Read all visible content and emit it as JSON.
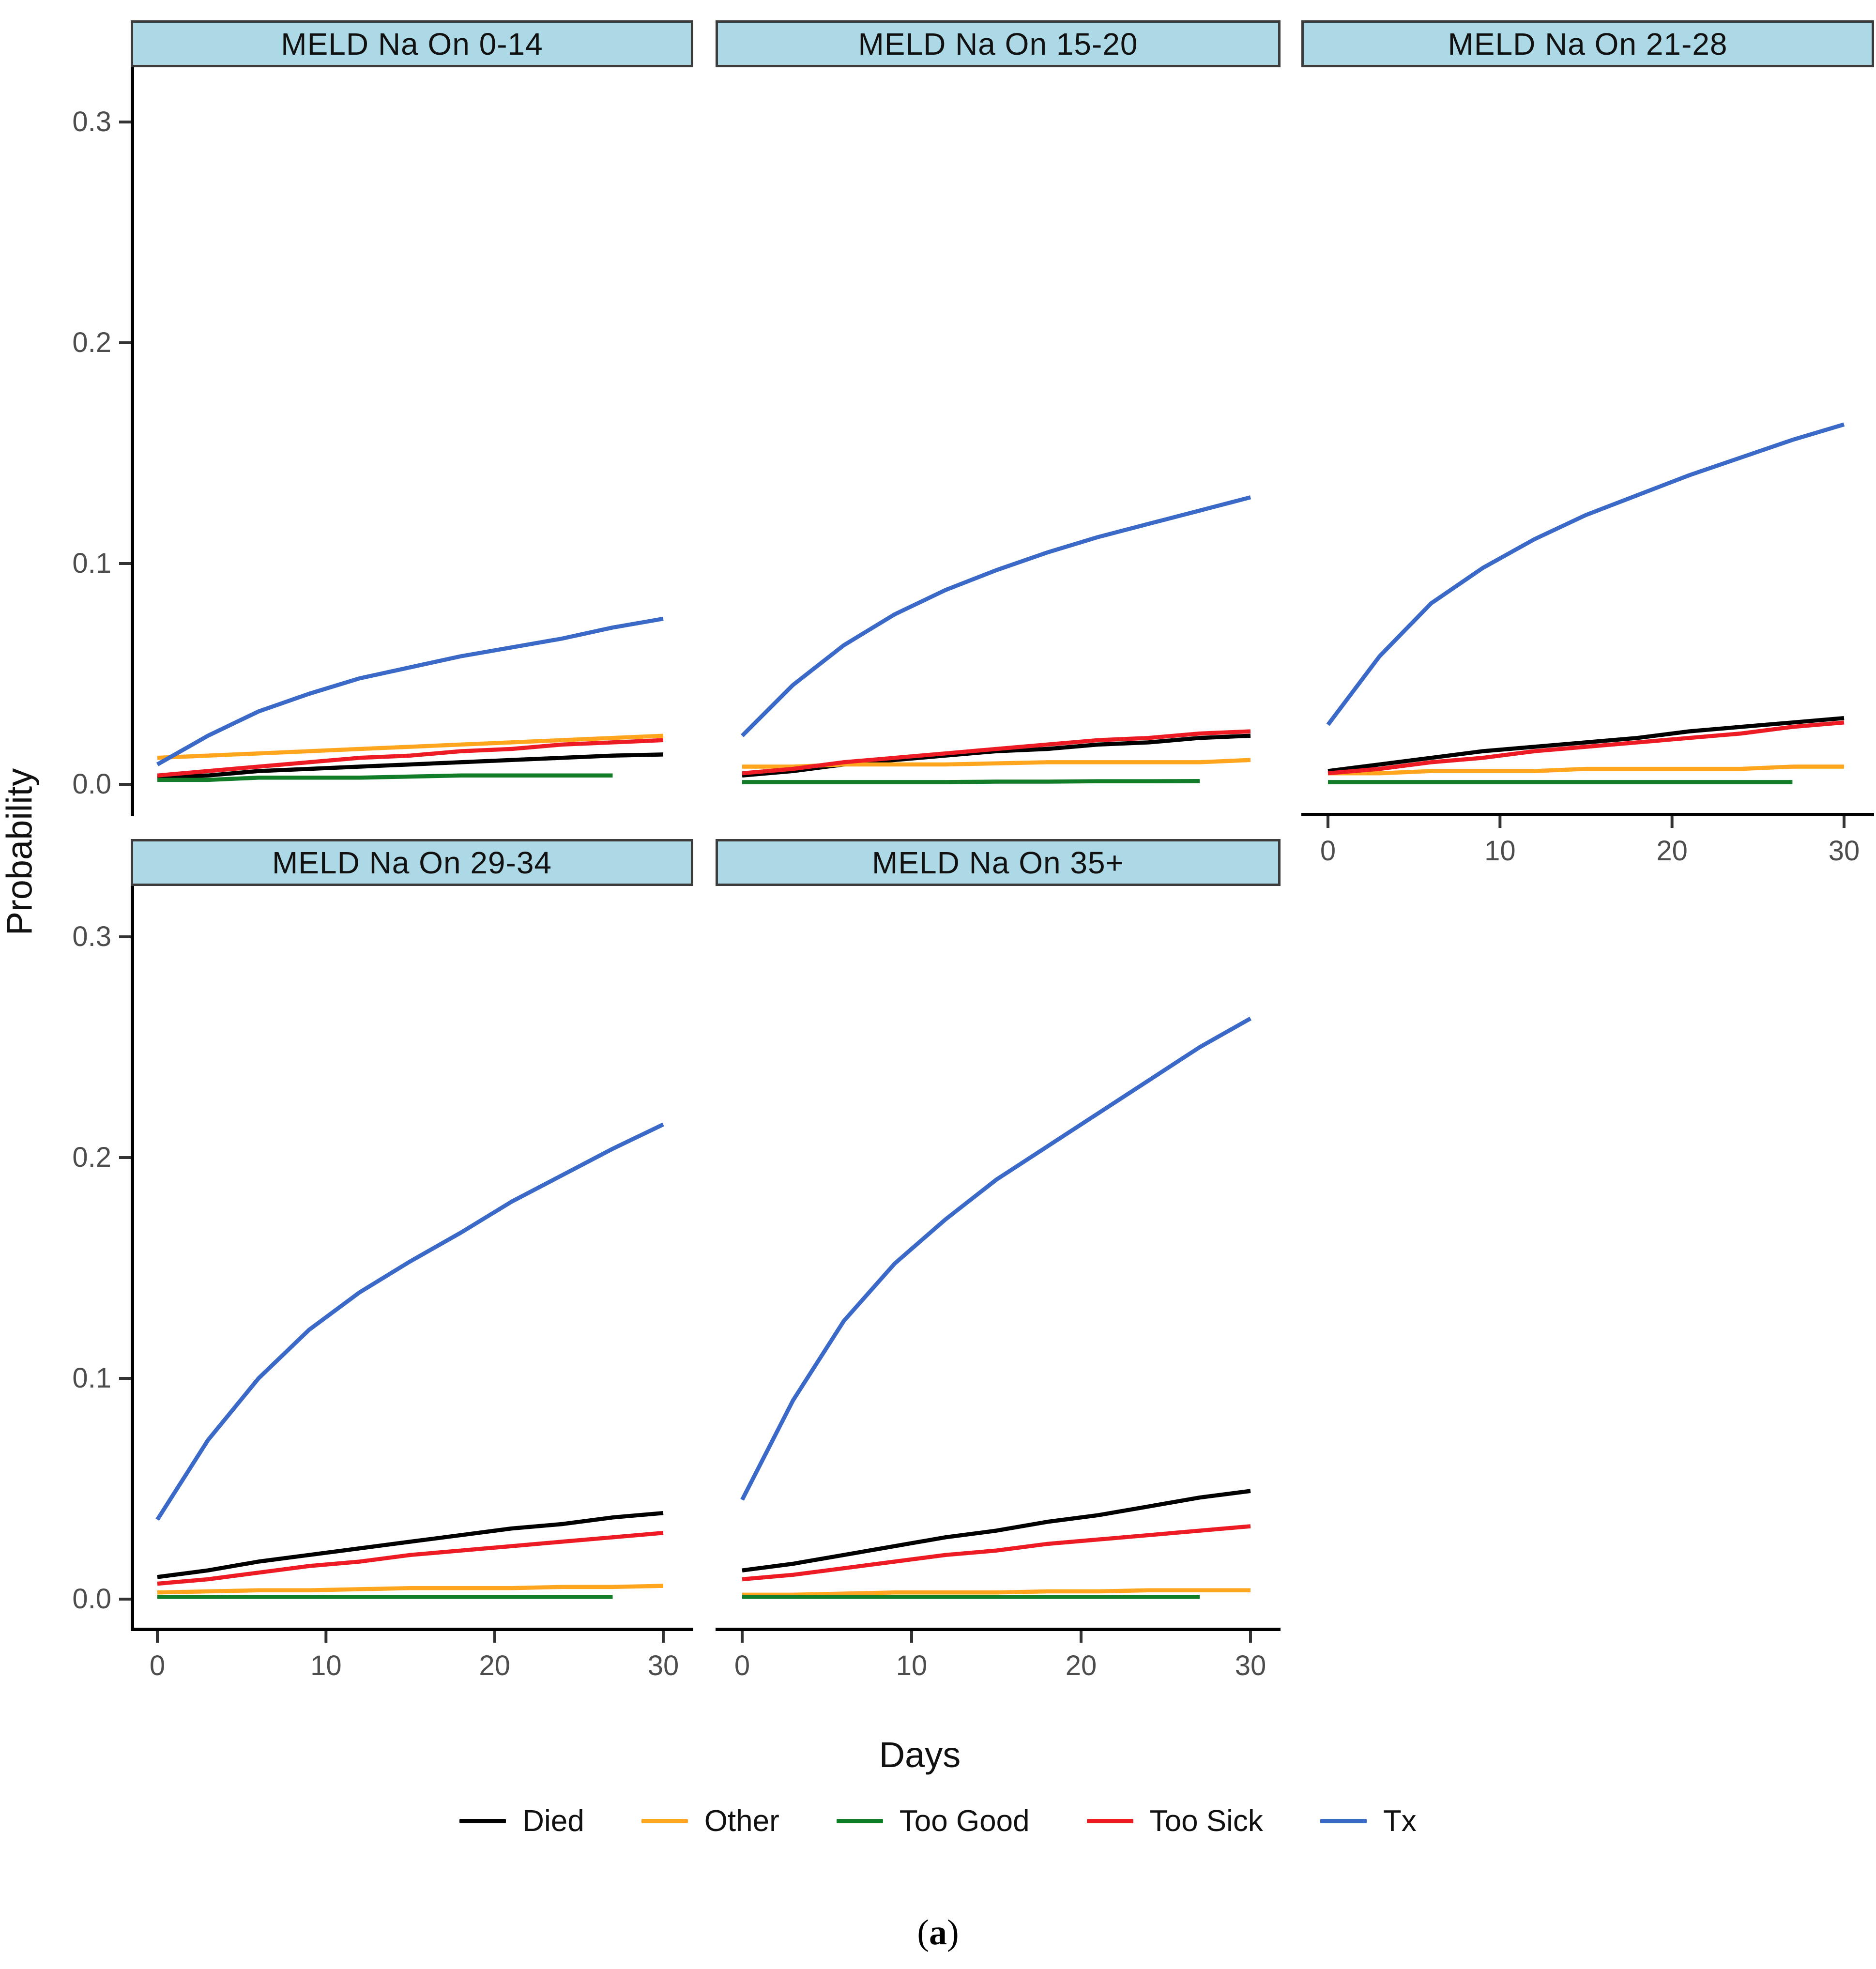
{
  "figure": {
    "y_axis_title": "Probability",
    "x_axis_title": "Days",
    "caption": "(a)",
    "caption_open": "(",
    "caption_letter": "a",
    "caption_close": ")",
    "header_fill": "#ADD8E6",
    "header_border": "#3C3C3C",
    "axis_line_color": "#000000",
    "tick_color": "#333333",
    "tick_label_color": "#4D4D4D"
  },
  "legend": {
    "items": [
      {
        "label": "Died",
        "color": "#000000"
      },
      {
        "label": "Other",
        "color": "#FFA51E"
      },
      {
        "label": "Too Good",
        "color": "#127D28"
      },
      {
        "label": "Too Sick",
        "color": "#ED1C24"
      },
      {
        "label": "Tx",
        "color": "#3B69C8"
      }
    ]
  },
  "chart_data": [
    {
      "type": "line",
      "title": "MELD Na On 0-14",
      "xlabel": "Days",
      "ylabel": "Probability",
      "xlim": [
        0,
        30
      ],
      "ylim": [
        0.0,
        0.3
      ],
      "x_ticks": [
        "0",
        "10",
        "20",
        "30"
      ],
      "y_ticks": [
        "0.3",
        "0.2",
        "0.1",
        "0.0"
      ],
      "x": [
        0,
        3,
        6,
        9,
        12,
        15,
        18,
        21,
        24,
        27,
        30
      ],
      "series": [
        {
          "name": "Died",
          "color": "#000000",
          "days": [
            0,
            3,
            6,
            9,
            12,
            15,
            18,
            21,
            24,
            27,
            30
          ],
          "values": [
            0.003,
            0.004,
            0.006,
            0.007,
            0.008,
            0.009,
            0.01,
            0.011,
            0.012,
            0.013,
            0.0135
          ]
        },
        {
          "name": "Other",
          "color": "#FFA51E",
          "days": [
            0,
            3,
            6,
            9,
            12,
            15,
            18,
            21,
            24,
            27,
            30
          ],
          "values": [
            0.012,
            0.013,
            0.014,
            0.015,
            0.016,
            0.017,
            0.018,
            0.019,
            0.02,
            0.021,
            0.022
          ]
        },
        {
          "name": "Too Good",
          "color": "#127D28",
          "days": [
            0,
            3,
            6,
            9,
            12,
            15,
            18,
            21,
            24,
            27
          ],
          "values": [
            0.002,
            0.002,
            0.003,
            0.003,
            0.003,
            0.0035,
            0.004,
            0.004,
            0.004,
            0.004
          ]
        },
        {
          "name": "Too Sick",
          "color": "#ED1C24",
          "days": [
            0,
            3,
            6,
            9,
            12,
            15,
            18,
            21,
            24,
            27,
            30
          ],
          "values": [
            0.004,
            0.006,
            0.008,
            0.01,
            0.012,
            0.013,
            0.015,
            0.016,
            0.018,
            0.019,
            0.02
          ]
        },
        {
          "name": "Tx",
          "color": "#3B69C8",
          "days": [
            0,
            3,
            6,
            9,
            12,
            15,
            18,
            21,
            24,
            27,
            30
          ],
          "values": [
            0.009,
            0.022,
            0.033,
            0.041,
            0.048,
            0.053,
            0.058,
            0.062,
            0.066,
            0.071,
            0.075
          ]
        }
      ]
    },
    {
      "type": "line",
      "title": "MELD Na On 15-20",
      "xlabel": "Days",
      "ylabel": "Probability",
      "xlim": [
        0,
        30
      ],
      "ylim": [
        0.0,
        0.3
      ],
      "x_ticks": [
        "0",
        "10",
        "20",
        "30"
      ],
      "y_ticks": [
        "0.3",
        "0.2",
        "0.1",
        "0.0"
      ],
      "x": [
        0,
        3,
        6,
        9,
        12,
        15,
        18,
        21,
        24,
        27,
        30
      ],
      "series": [
        {
          "name": "Died",
          "color": "#000000",
          "days": [
            0,
            3,
            6,
            9,
            12,
            15,
            18,
            21,
            24,
            27,
            30
          ],
          "values": [
            0.004,
            0.006,
            0.009,
            0.011,
            0.013,
            0.015,
            0.016,
            0.018,
            0.019,
            0.021,
            0.022
          ]
        },
        {
          "name": "Other",
          "color": "#FFA51E",
          "days": [
            0,
            3,
            6,
            9,
            12,
            15,
            18,
            21,
            24,
            27,
            30
          ],
          "values": [
            0.008,
            0.008,
            0.009,
            0.009,
            0.009,
            0.0095,
            0.01,
            0.01,
            0.01,
            0.01,
            0.011
          ]
        },
        {
          "name": "Too Good",
          "color": "#127D28",
          "days": [
            0,
            3,
            6,
            9,
            12,
            15,
            18,
            21,
            24,
            27
          ],
          "values": [
            0.001,
            0.001,
            0.001,
            0.001,
            0.001,
            0.0012,
            0.0012,
            0.0014,
            0.0014,
            0.0015
          ]
        },
        {
          "name": "Too Sick",
          "color": "#ED1C24",
          "days": [
            0,
            3,
            6,
            9,
            12,
            15,
            18,
            21,
            24,
            27,
            30
          ],
          "values": [
            0.005,
            0.007,
            0.01,
            0.012,
            0.014,
            0.016,
            0.018,
            0.02,
            0.021,
            0.023,
            0.024
          ]
        },
        {
          "name": "Tx",
          "color": "#3B69C8",
          "days": [
            0,
            3,
            6,
            9,
            12,
            15,
            18,
            21,
            24,
            27,
            30
          ],
          "values": [
            0.022,
            0.045,
            0.063,
            0.077,
            0.088,
            0.097,
            0.105,
            0.112,
            0.118,
            0.124,
            0.13
          ]
        }
      ]
    },
    {
      "type": "line",
      "title": "MELD Na On 21-28",
      "xlabel": "Days",
      "ylabel": "Probability",
      "xlim": [
        0,
        30
      ],
      "ylim": [
        0.0,
        0.3
      ],
      "x_ticks": [
        "0",
        "10",
        "20",
        "30"
      ],
      "y_ticks": [
        "0.3",
        "0.2",
        "0.1",
        "0.0"
      ],
      "x": [
        0,
        3,
        6,
        9,
        12,
        15,
        18,
        21,
        24,
        27,
        30
      ],
      "series": [
        {
          "name": "Died",
          "color": "#000000",
          "days": [
            0,
            3,
            6,
            9,
            12,
            15,
            18,
            21,
            24,
            27,
            30
          ],
          "values": [
            0.006,
            0.009,
            0.012,
            0.015,
            0.017,
            0.019,
            0.021,
            0.024,
            0.026,
            0.028,
            0.03
          ]
        },
        {
          "name": "Other",
          "color": "#FFA51E",
          "days": [
            0,
            3,
            6,
            9,
            12,
            15,
            18,
            21,
            24,
            27,
            30
          ],
          "values": [
            0.005,
            0.005,
            0.006,
            0.006,
            0.006,
            0.007,
            0.007,
            0.007,
            0.007,
            0.008,
            0.008
          ]
        },
        {
          "name": "Too Good",
          "color": "#127D28",
          "days": [
            0,
            3,
            6,
            9,
            12,
            15,
            18,
            21,
            24,
            27
          ],
          "values": [
            0.001,
            0.001,
            0.001,
            0.001,
            0.001,
            0.001,
            0.001,
            0.001,
            0.001,
            0.001
          ]
        },
        {
          "name": "Too Sick",
          "color": "#ED1C24",
          "days": [
            0,
            3,
            6,
            9,
            12,
            15,
            18,
            21,
            24,
            27,
            30
          ],
          "values": [
            0.005,
            0.007,
            0.01,
            0.012,
            0.015,
            0.017,
            0.019,
            0.021,
            0.023,
            0.026,
            0.028
          ]
        },
        {
          "name": "Tx",
          "color": "#3B69C8",
          "days": [
            0,
            3,
            6,
            9,
            12,
            15,
            18,
            21,
            24,
            27,
            30
          ],
          "values": [
            0.027,
            0.058,
            0.082,
            0.098,
            0.111,
            0.122,
            0.131,
            0.14,
            0.148,
            0.156,
            0.163
          ]
        }
      ]
    },
    {
      "type": "line",
      "title": "MELD Na On 29-34",
      "xlabel": "Days",
      "ylabel": "Probability",
      "xlim": [
        0,
        30
      ],
      "ylim": [
        0.0,
        0.3
      ],
      "x_ticks": [
        "0",
        "10",
        "20",
        "30"
      ],
      "y_ticks": [
        "0.3",
        "0.2",
        "0.1",
        "0.0"
      ],
      "x": [
        0,
        3,
        6,
        9,
        12,
        15,
        18,
        21,
        24,
        27,
        30
      ],
      "series": [
        {
          "name": "Died",
          "color": "#000000",
          "days": [
            0,
            3,
            6,
            9,
            12,
            15,
            18,
            21,
            24,
            27,
            30
          ],
          "values": [
            0.01,
            0.013,
            0.017,
            0.02,
            0.023,
            0.026,
            0.029,
            0.032,
            0.034,
            0.037,
            0.039
          ]
        },
        {
          "name": "Other",
          "color": "#FFA51E",
          "days": [
            0,
            3,
            6,
            9,
            12,
            15,
            18,
            21,
            24,
            27,
            30
          ],
          "values": [
            0.003,
            0.0035,
            0.004,
            0.004,
            0.0045,
            0.005,
            0.005,
            0.005,
            0.0055,
            0.0055,
            0.006
          ]
        },
        {
          "name": "Too Good",
          "color": "#127D28",
          "days": [
            0,
            3,
            6,
            9,
            12,
            15,
            18,
            21,
            24,
            27
          ],
          "values": [
            0.001,
            0.001,
            0.001,
            0.001,
            0.001,
            0.001,
            0.001,
            0.001,
            0.001,
            0.001
          ]
        },
        {
          "name": "Too Sick",
          "color": "#ED1C24",
          "days": [
            0,
            3,
            6,
            9,
            12,
            15,
            18,
            21,
            24,
            27,
            30
          ],
          "values": [
            0.007,
            0.009,
            0.012,
            0.015,
            0.017,
            0.02,
            0.022,
            0.024,
            0.026,
            0.028,
            0.03
          ]
        },
        {
          "name": "Tx",
          "color": "#3B69C8",
          "days": [
            0,
            3,
            6,
            9,
            12,
            15,
            18,
            21,
            24,
            27,
            30
          ],
          "values": [
            0.036,
            0.072,
            0.1,
            0.122,
            0.139,
            0.153,
            0.166,
            0.18,
            0.192,
            0.204,
            0.215
          ]
        }
      ]
    },
    {
      "type": "line",
      "title": "MELD Na On 35+",
      "xlabel": "Days",
      "ylabel": "Probability",
      "xlim": [
        0,
        30
      ],
      "ylim": [
        0.0,
        0.3
      ],
      "x_ticks": [
        "0",
        "10",
        "20",
        "30"
      ],
      "y_ticks": [
        "0.3",
        "0.2",
        "0.1",
        "0.0"
      ],
      "x": [
        0,
        3,
        6,
        9,
        12,
        15,
        18,
        21,
        24,
        27,
        30
      ],
      "series": [
        {
          "name": "Died",
          "color": "#000000",
          "days": [
            0,
            3,
            6,
            9,
            12,
            15,
            18,
            21,
            24,
            27,
            30
          ],
          "values": [
            0.013,
            0.016,
            0.02,
            0.024,
            0.028,
            0.031,
            0.035,
            0.038,
            0.042,
            0.046,
            0.049
          ]
        },
        {
          "name": "Other",
          "color": "#FFA51E",
          "days": [
            0,
            3,
            6,
            9,
            12,
            15,
            18,
            21,
            24,
            27,
            30
          ],
          "values": [
            0.002,
            0.002,
            0.0025,
            0.003,
            0.003,
            0.003,
            0.0035,
            0.0035,
            0.004,
            0.004,
            0.004
          ]
        },
        {
          "name": "Too Good",
          "color": "#127D28",
          "days": [
            0,
            3,
            6,
            9,
            12,
            15,
            18,
            21,
            24,
            27
          ],
          "values": [
            0.001,
            0.001,
            0.001,
            0.001,
            0.001,
            0.001,
            0.001,
            0.001,
            0.001,
            0.001
          ]
        },
        {
          "name": "Too Sick",
          "color": "#ED1C24",
          "days": [
            0,
            3,
            6,
            9,
            12,
            15,
            18,
            21,
            24,
            27,
            30
          ],
          "values": [
            0.009,
            0.011,
            0.014,
            0.017,
            0.02,
            0.022,
            0.025,
            0.027,
            0.029,
            0.031,
            0.033
          ]
        },
        {
          "name": "Tx",
          "color": "#3B69C8",
          "days": [
            0,
            3,
            6,
            9,
            12,
            15,
            18,
            21,
            24,
            27,
            30
          ],
          "values": [
            0.045,
            0.09,
            0.126,
            0.152,
            0.172,
            0.19,
            0.205,
            0.22,
            0.235,
            0.25,
            0.263
          ]
        }
      ]
    }
  ]
}
